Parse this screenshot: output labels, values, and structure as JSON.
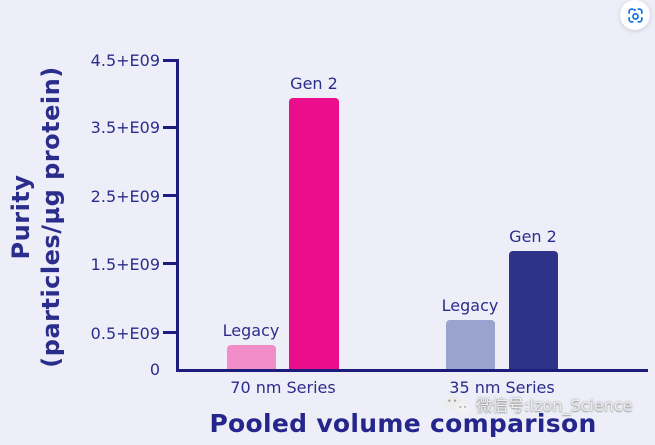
{
  "chart_data": {
    "type": "bar",
    "title": "Pooled volume comparison",
    "ylabel_line1": "Purity",
    "ylabel_line2": "(particles/µg protein)",
    "categories": [
      "70 nm Series",
      "35 nm Series"
    ],
    "series": [
      {
        "name": "Legacy",
        "values": [
          350000000,
          720000000
        ]
      },
      {
        "name": "Gen 2",
        "values": [
          3950000000,
          1720000000
        ]
      }
    ],
    "y_ticks": [
      "4.5+E09",
      "3.5+E09",
      "2.5+E09",
      "1.5+E09",
      "0.5+E09",
      "0"
    ],
    "ylim": [
      0,
      4500000000
    ],
    "legend_position": "none",
    "grid": false,
    "colors": {
      "legacy_70nm": "#f18dc9",
      "gen2_70nm": "#eb0e8c",
      "legacy_35nm": "#99a3ce",
      "gen2_35nm": "#2f3289",
      "axis": "#1c1c7d",
      "text": "#2b2d8c",
      "background": "#edeef7",
      "scan_icon_blue": "#1673e6"
    }
  },
  "icons": {
    "scan": "scan-viewfinder",
    "watermark_logo": "wechat-logo"
  },
  "watermark": {
    "text": "微信号:Izon_Science"
  }
}
